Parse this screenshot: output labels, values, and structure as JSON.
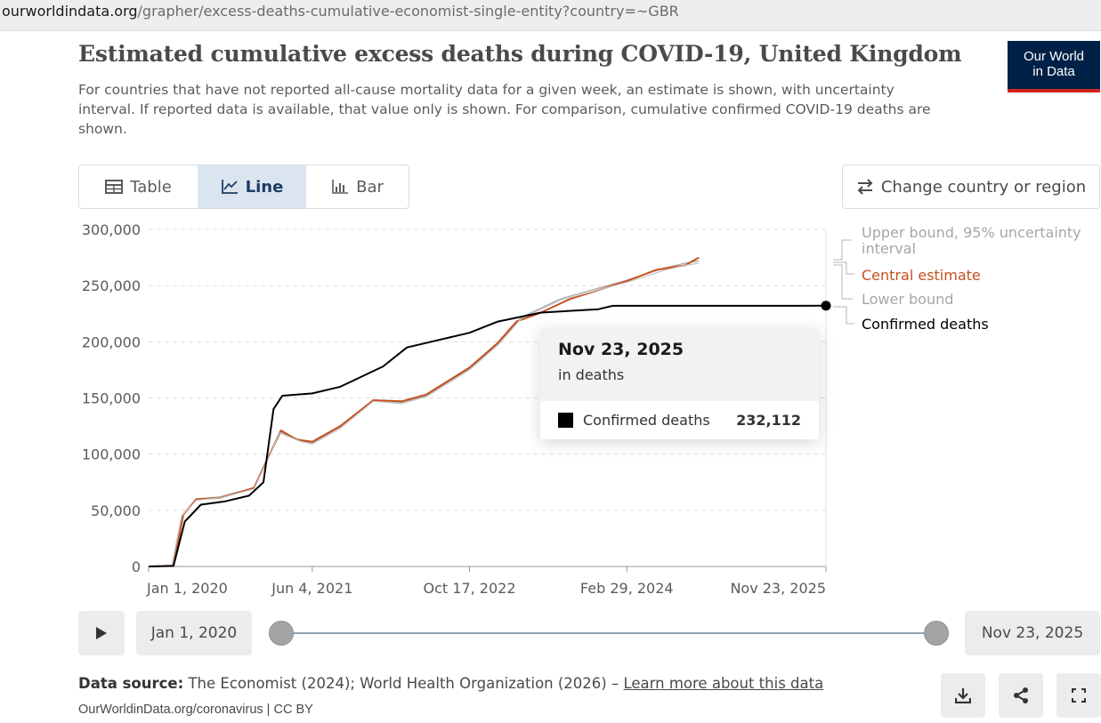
{
  "browser": {
    "url_domain": "ourworldindata.org",
    "url_path": "/grapher/excess-deaths-cumulative-economist-single-entity?country=~GBR"
  },
  "header": {
    "title": "Estimated cumulative excess deaths during COVID-19, United Kingdom",
    "subtitle": "For countries that have not reported all-cause mortality data for a given week, an estimate is shown, with uncertainty interval. If reported data is available, that value only is shown. For comparison, cumulative confirmed COVID-19 deaths are shown.",
    "logo_line1": "Our World",
    "logo_line2": "in Data"
  },
  "tabs": [
    {
      "label": "Table",
      "icon": "table-icon",
      "active": false
    },
    {
      "label": "Line",
      "icon": "line-chart-icon",
      "active": true
    },
    {
      "label": "Bar",
      "icon": "bar-chart-icon",
      "active": false
    }
  ],
  "change_button": {
    "label": "Change country or region",
    "icon": "swap-arrows-icon"
  },
  "chart_data": {
    "type": "line",
    "title": "Estimated cumulative excess deaths during COVID-19, United Kingdom",
    "x_tick_labels": [
      "Jan 1, 2020",
      "Jun 4, 2021",
      "Oct 17, 2022",
      "Feb 29, 2024",
      "Nov 23, 2025"
    ],
    "x_range": [
      "2020-01-01",
      "2025-11-23"
    ],
    "y_ticks": [
      0,
      50000,
      100000,
      150000,
      200000,
      250000,
      300000
    ],
    "y_tick_labels": [
      "0",
      "50,000",
      "100,000",
      "150,000",
      "200,000",
      "250,000",
      "300,000"
    ],
    "ylim": [
      0,
      300000
    ],
    "grid": "horizontal dashed",
    "legend_position": "right",
    "series": [
      {
        "name": "Upper bound, 95% uncertainty interval",
        "color": "#a6a6a6",
        "points": [
          [
            "2020-01-01",
            0
          ],
          [
            "2020-03-15",
            1000
          ],
          [
            "2020-04-15",
            45000
          ],
          [
            "2020-06-01",
            60000
          ],
          [
            "2020-08-15",
            62000
          ],
          [
            "2020-12-01",
            70000
          ],
          [
            "2021-01-20",
            100000
          ],
          [
            "2021-02-20",
            120000
          ],
          [
            "2021-05-01",
            112000
          ],
          [
            "2021-06-04",
            110000
          ],
          [
            "2021-09-01",
            124000
          ],
          [
            "2021-12-15",
            148000
          ],
          [
            "2022-03-15",
            146000
          ],
          [
            "2022-06-01",
            152000
          ],
          [
            "2022-10-17",
            176000
          ],
          [
            "2023-01-15",
            198000
          ],
          [
            "2023-04-01",
            222000
          ],
          [
            "2023-08-01",
            238000
          ],
          [
            "2024-02-29",
            255000
          ],
          [
            "2024-07-01",
            266000
          ],
          [
            "2024-09-01",
            270000
          ],
          [
            "2024-10-15",
            272000
          ]
        ]
      },
      {
        "name": "Central estimate",
        "color": "#c6501d",
        "points": [
          [
            "2020-01-01",
            0
          ],
          [
            "2020-03-20",
            800
          ],
          [
            "2020-04-20",
            46000
          ],
          [
            "2020-06-01",
            60000
          ],
          [
            "2020-08-15",
            61000
          ],
          [
            "2020-12-01",
            70000
          ],
          [
            "2021-01-20",
            100000
          ],
          [
            "2021-02-25",
            121000
          ],
          [
            "2021-04-15",
            113000
          ],
          [
            "2021-06-04",
            111000
          ],
          [
            "2021-09-01",
            125000
          ],
          [
            "2021-12-15",
            148000
          ],
          [
            "2022-03-15",
            147000
          ],
          [
            "2022-06-01",
            153000
          ],
          [
            "2022-10-17",
            177000
          ],
          [
            "2023-01-15",
            199000
          ],
          [
            "2023-03-15",
            218000
          ],
          [
            "2023-06-01",
            226000
          ],
          [
            "2023-09-01",
            238000
          ],
          [
            "2024-02-29",
            254000
          ],
          [
            "2024-06-01",
            264000
          ],
          [
            "2024-09-01",
            268000
          ],
          [
            "2024-10-15",
            275000
          ]
        ]
      },
      {
        "name": "Lower bound",
        "color": "#c4c4c4",
        "points": [
          [
            "2020-01-01",
            0
          ],
          [
            "2020-03-15",
            1000
          ],
          [
            "2020-04-15",
            45000
          ],
          [
            "2020-06-01",
            59000
          ],
          [
            "2020-08-15",
            61000
          ],
          [
            "2020-12-01",
            69000
          ],
          [
            "2021-01-20",
            99000
          ],
          [
            "2021-02-20",
            119000
          ],
          [
            "2021-05-01",
            111000
          ],
          [
            "2021-06-04",
            109000
          ],
          [
            "2021-09-01",
            123000
          ],
          [
            "2021-12-15",
            147000
          ],
          [
            "2022-03-15",
            145000
          ],
          [
            "2022-06-01",
            151000
          ],
          [
            "2022-10-17",
            175000
          ],
          [
            "2023-01-15",
            197000
          ],
          [
            "2023-04-01",
            221000
          ],
          [
            "2023-08-01",
            237000
          ],
          [
            "2024-02-29",
            253000
          ],
          [
            "2024-07-01",
            264000
          ],
          [
            "2024-09-01",
            268000
          ],
          [
            "2024-10-15",
            270000
          ]
        ]
      },
      {
        "name": "Confirmed deaths",
        "color": "#000000",
        "points": [
          [
            "2020-01-01",
            0
          ],
          [
            "2020-03-20",
            500
          ],
          [
            "2020-04-25",
            40000
          ],
          [
            "2020-06-15",
            55000
          ],
          [
            "2020-09-01",
            58000
          ],
          [
            "2020-11-15",
            63000
          ],
          [
            "2020-12-31",
            75000
          ],
          [
            "2021-02-01",
            140000
          ],
          [
            "2021-03-01",
            152000
          ],
          [
            "2021-06-04",
            154000
          ],
          [
            "2021-09-01",
            160000
          ],
          [
            "2022-01-15",
            178000
          ],
          [
            "2022-04-01",
            195000
          ],
          [
            "2022-10-17",
            208000
          ],
          [
            "2023-01-15",
            218000
          ],
          [
            "2023-06-01",
            226000
          ],
          [
            "2023-12-01",
            229000
          ],
          [
            "2024-01-15",
            232000
          ],
          [
            "2025-11-23",
            232112
          ]
        ]
      }
    ],
    "tooltip": {
      "date": "Nov 23, 2025",
      "unit": "in deaths",
      "series": "Confirmed deaths",
      "value": "232,112"
    }
  },
  "timeline": {
    "play_icon": "play-icon",
    "start_label": "Jan 1, 2020",
    "end_label": "Nov 23, 2025",
    "start_position": 0,
    "end_position": 1
  },
  "footer": {
    "source_label": "Data source:",
    "source_text": "The Economist (2024); World Health Organization (2026) – ",
    "learn_more": "Learn more about this data",
    "license": "OurWorldinData.org/coronavirus | CC BY",
    "icons": [
      "download-icon",
      "share-icon",
      "fullscreen-icon"
    ]
  }
}
